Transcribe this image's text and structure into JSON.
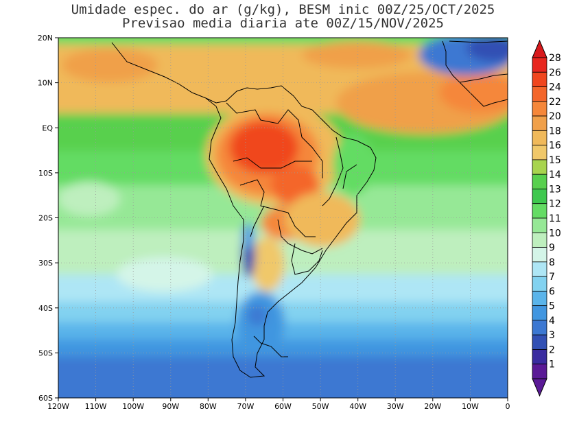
{
  "title": {
    "line1": "Umidade espec. do ar (g/kg), BESM inic 00Z/25/OCT/2025",
    "line2": "Previsao media diaria ate 00Z/15/NOV/2025"
  },
  "map": {
    "lon_labels": [
      "120W",
      "110W",
      "100W",
      "90W",
      "80W",
      "70W",
      "60W",
      "50W",
      "40W",
      "30W",
      "20W",
      "10W",
      "0"
    ],
    "lat_labels": [
      "20N",
      "10N",
      "EQ",
      "10S",
      "20S",
      "30S",
      "40S",
      "50S",
      "60S"
    ]
  },
  "colorbar": {
    "levels": [
      "28",
      "26",
      "24",
      "22",
      "20",
      "18",
      "16",
      "15",
      "14",
      "13",
      "12",
      "11",
      "10",
      "9",
      "8",
      "7",
      "6",
      "5",
      "4",
      "3",
      "2",
      "1"
    ],
    "colors": [
      "#e8261e",
      "#f0461e",
      "#f4662a",
      "#f5873a",
      "#f0a04a",
      "#f0b95a",
      "#f0c86a",
      "#a8d44e",
      "#58d04e",
      "#3ec84e",
      "#64dc64",
      "#96e896",
      "#beefbe",
      "#d4f5e8",
      "#aee6f5",
      "#82d2f0",
      "#5ab4ea",
      "#4196e0",
      "#3c78d2",
      "#3250b4",
      "#3a2ca0",
      "#5a1a96"
    ],
    "top_color": "#d7191c",
    "bottom_color": "#5a1a96"
  }
}
